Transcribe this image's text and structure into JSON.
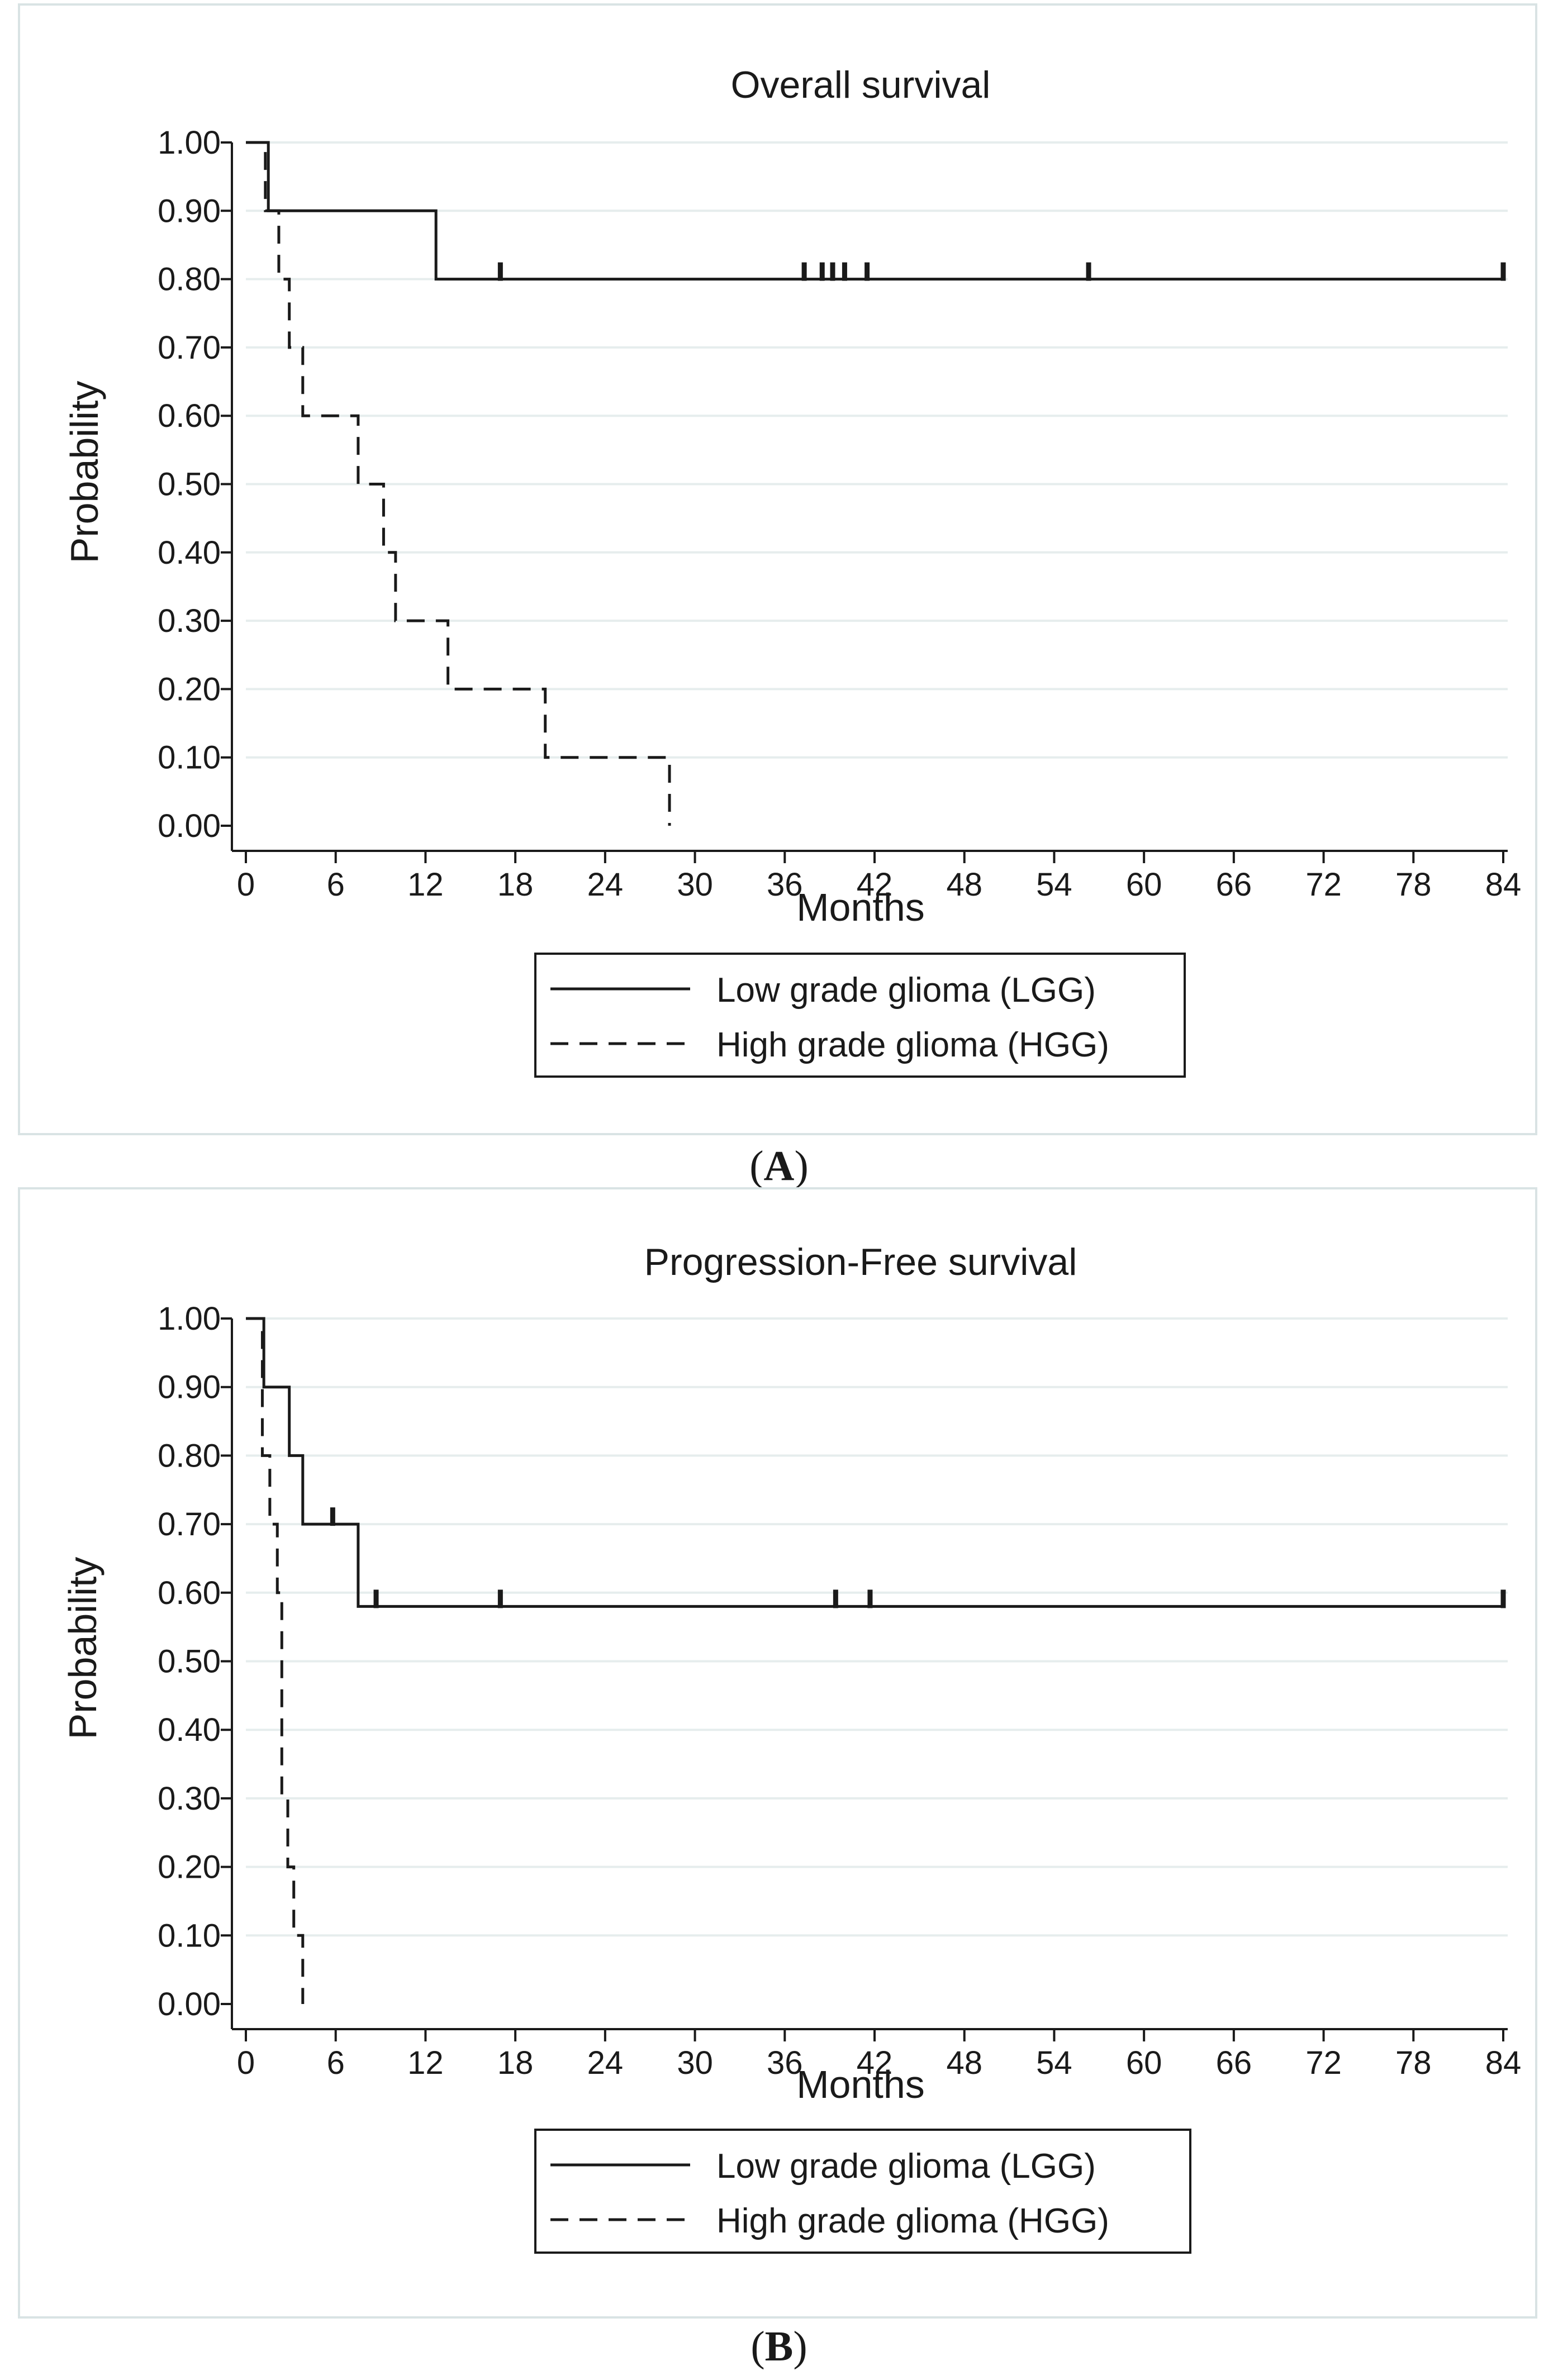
{
  "chart_data": [
    {
      "type": "line",
      "subtype": "kaplan-meier step",
      "panel_label": "A",
      "title": "Overall survival",
      "xlabel": "Months",
      "ylabel": "Probability",
      "xlim": [
        0,
        84
      ],
      "ylim": [
        0,
        1
      ],
      "x_ticks": [
        0,
        6,
        12,
        18,
        24,
        30,
        36,
        42,
        48,
        54,
        60,
        66,
        72,
        78,
        84
      ],
      "y_ticks": [
        0,
        0.1,
        0.2,
        0.3,
        0.4,
        0.5,
        0.6,
        0.7,
        0.8,
        0.9,
        1.0
      ],
      "y_tick_labels": [
        "0.00",
        "0.10",
        "0.20",
        "0.30",
        "0.40",
        "0.50",
        "0.60",
        "0.70",
        "0.80",
        "0.90",
        "1.00"
      ],
      "grid": true,
      "legend_position": "bottom",
      "series": [
        {
          "name": "Low grade glioma (LGG)",
          "style": "solid",
          "steps": [
            [
              0,
              1.0
            ],
            [
              1.5,
              0.9
            ],
            [
              12.7,
              0.8
            ]
          ],
          "end_x": 84,
          "censored": [
            17,
            37.3,
            38.5,
            39.2,
            40,
            41.5,
            56.3,
            84
          ]
        },
        {
          "name": "High grade glioma (HGG)",
          "style": "dashed",
          "steps": [
            [
              0,
              1.0
            ],
            [
              1.3,
              0.9
            ],
            [
              2.2,
              0.8
            ],
            [
              2.9,
              0.7
            ],
            [
              3.8,
              0.6
            ],
            [
              7.5,
              0.5
            ],
            [
              9.2,
              0.4
            ],
            [
              10,
              0.3
            ],
            [
              13.5,
              0.2
            ],
            [
              20,
              0.1
            ],
            [
              28.3,
              0.0
            ]
          ],
          "end_x": 28.3,
          "censored": []
        }
      ]
    },
    {
      "type": "line",
      "subtype": "kaplan-meier step",
      "panel_label": "B",
      "title": "Progression-Free survival",
      "xlabel": "Months",
      "ylabel": "Probability",
      "xlim": [
        0,
        84
      ],
      "ylim": [
        0,
        1
      ],
      "x_ticks": [
        0,
        6,
        12,
        18,
        24,
        30,
        36,
        42,
        48,
        54,
        60,
        66,
        72,
        78,
        84
      ],
      "y_ticks": [
        0,
        0.1,
        0.2,
        0.3,
        0.4,
        0.5,
        0.6,
        0.7,
        0.8,
        0.9,
        1.0
      ],
      "y_tick_labels": [
        "0.00",
        "0.10",
        "0.20",
        "0.30",
        "0.40",
        "0.50",
        "0.60",
        "0.70",
        "0.80",
        "0.90",
        "1.00"
      ],
      "grid": true,
      "legend_position": "bottom",
      "series": [
        {
          "name": "Low grade glioma (LGG)",
          "style": "solid",
          "steps": [
            [
              0,
              1.0
            ],
            [
              1.2,
              0.9
            ],
            [
              2.9,
              0.8
            ],
            [
              3.8,
              0.7
            ],
            [
              7.5,
              0.58
            ]
          ],
          "end_x": 84,
          "censored": [
            5.8,
            8.7,
            17,
            39.4,
            41.7,
            84
          ]
        },
        {
          "name": "High grade glioma (HGG)",
          "style": "dashed",
          "steps": [
            [
              0,
              1.0
            ],
            [
              1.1,
              0.8
            ],
            [
              1.6,
              0.7
            ],
            [
              2.1,
              0.6
            ],
            [
              2.4,
              0.3
            ],
            [
              2.8,
              0.2
            ],
            [
              3.2,
              0.1
            ],
            [
              3.8,
              0.0
            ]
          ],
          "end_x": 3.8,
          "censored": []
        }
      ]
    }
  ]
}
